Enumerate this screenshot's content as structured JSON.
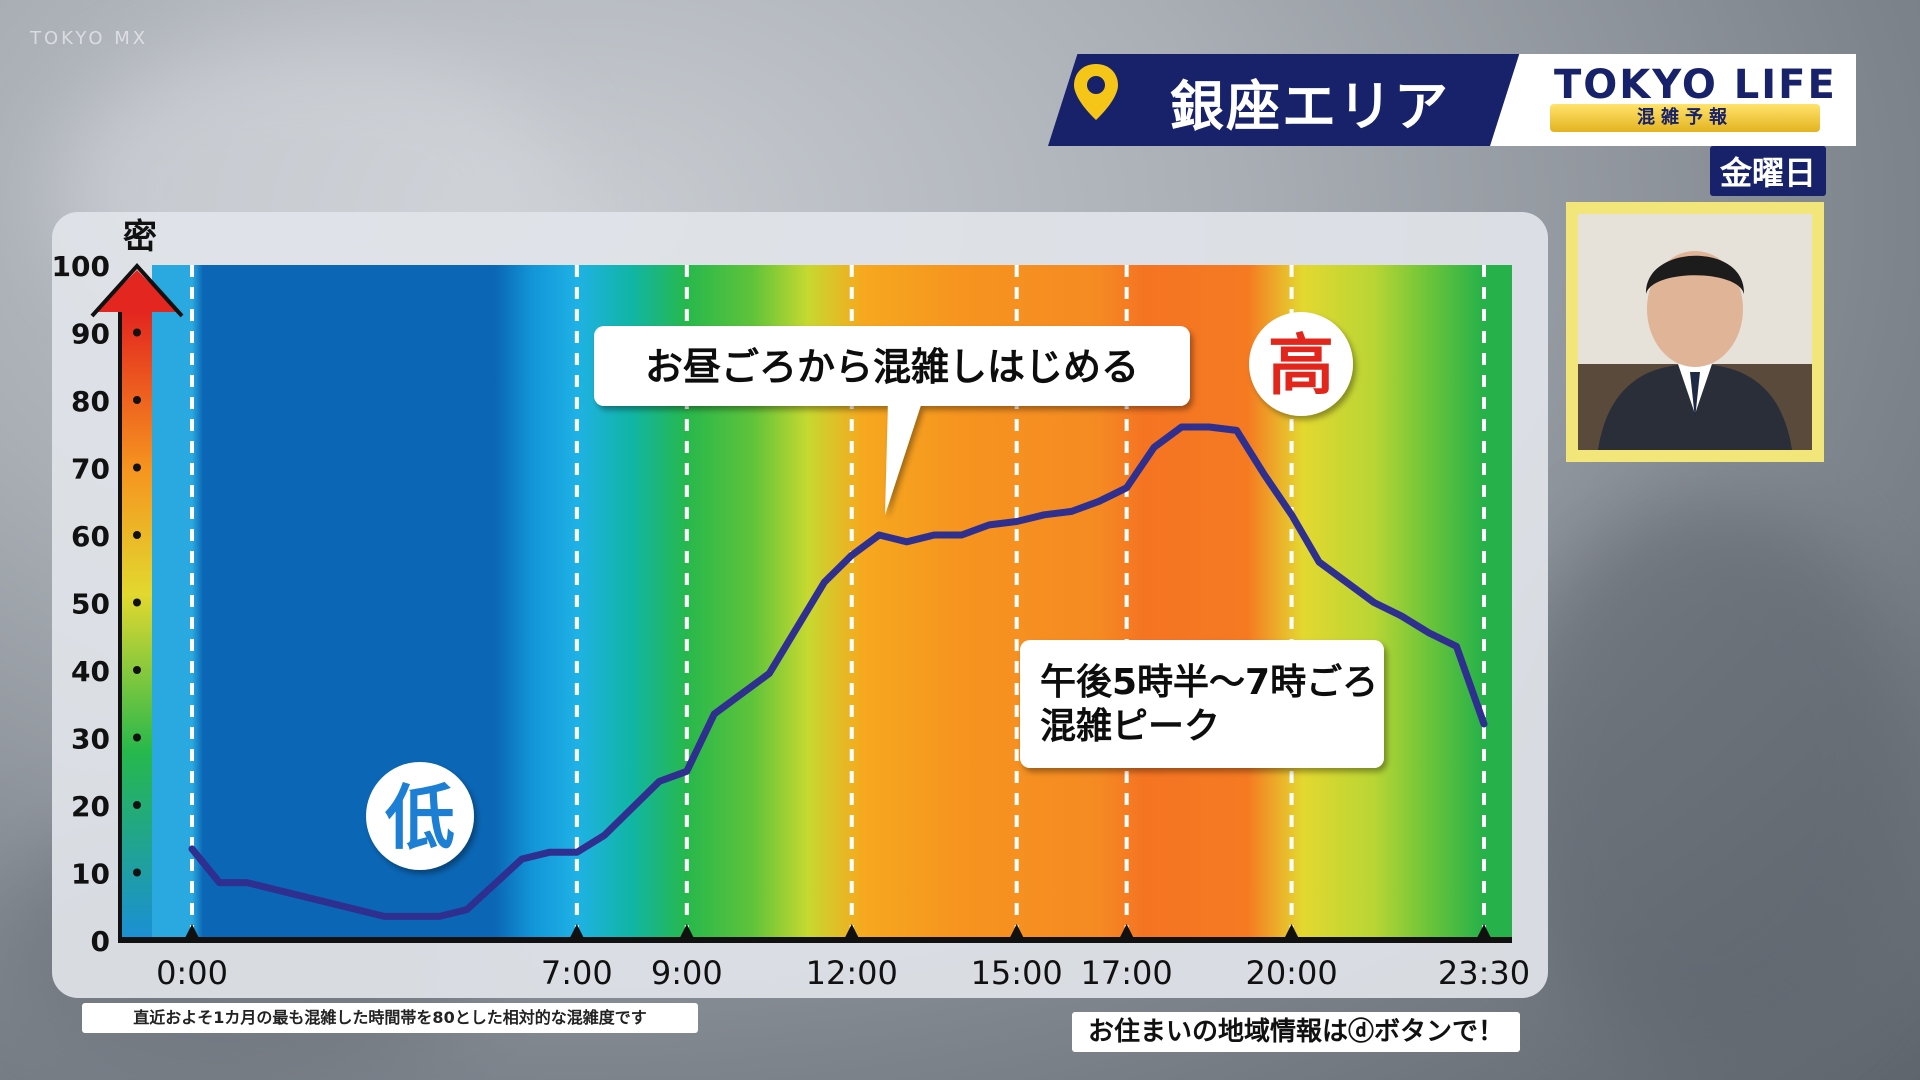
{
  "header": {
    "watermark": "TOKYO MX",
    "area_title": "銀座エリア",
    "logo": "TOKYO LIFE",
    "logo_sub": "混雑予報",
    "day": "金曜日"
  },
  "colors": {
    "banner": "#17226a",
    "line": "#2f2f8f"
  },
  "footer": {
    "note": "直近およそ1カ月の最も混雑した時間帯を80とした相対的な混雑度です",
    "info": "お住まいの地域情報はⓓボタンで！"
  },
  "chart_data": {
    "type": "line",
    "ylabel": "密",
    "ylim": [
      0,
      100
    ],
    "yticks": [
      0,
      10,
      20,
      30,
      40,
      50,
      60,
      70,
      80,
      90,
      100
    ],
    "xlim": [
      0,
      23.5
    ],
    "xtick_labels": [
      {
        "t": 0,
        "label": "0:00"
      },
      {
        "t": 7,
        "label": "7:00"
      },
      {
        "t": 9,
        "label": "9:00"
      },
      {
        "t": 12,
        "label": "12:00"
      },
      {
        "t": 15,
        "label": "15:00"
      },
      {
        "t": 17,
        "label": "17:00"
      },
      {
        "t": 20,
        "label": "20:00"
      },
      {
        "t": 23.5,
        "label": "23:30"
      }
    ],
    "points": [
      [
        0,
        13.5
      ],
      [
        0.5,
        8.5
      ],
      [
        1,
        8.5
      ],
      [
        3.5,
        3.5
      ],
      [
        4.5,
        3.5
      ],
      [
        5,
        4.5
      ],
      [
        6,
        12
      ],
      [
        6.5,
        13
      ],
      [
        7,
        13
      ],
      [
        7.5,
        15.5
      ],
      [
        8.5,
        23.5
      ],
      [
        9,
        25
      ],
      [
        9.5,
        33.5
      ],
      [
        10.5,
        39.5
      ],
      [
        11.5,
        53
      ],
      [
        12,
        57
      ],
      [
        12.5,
        60
      ],
      [
        13,
        59
      ],
      [
        13.5,
        60
      ],
      [
        14,
        60
      ],
      [
        14.5,
        61.5
      ],
      [
        15,
        62
      ],
      [
        15.5,
        63
      ],
      [
        16,
        63.5
      ],
      [
        16.5,
        65
      ],
      [
        17,
        67
      ],
      [
        17.5,
        73
      ],
      [
        18,
        76
      ],
      [
        18.5,
        76
      ],
      [
        19,
        75.5
      ],
      [
        19.5,
        69
      ],
      [
        20,
        63
      ],
      [
        20.5,
        56
      ],
      [
        21.5,
        50
      ],
      [
        22,
        48
      ],
      [
        22.5,
        45.5
      ],
      [
        23,
        43.5
      ],
      [
        23.5,
        32
      ]
    ],
    "band_colors": [
      {
        "t": 0,
        "color": "#2aa9e0"
      },
      {
        "t": 0.2,
        "color": "#0b66b5"
      },
      {
        "t": 5.5,
        "color": "#0b66b5"
      },
      {
        "t": 6.2,
        "color": "#1296d8"
      },
      {
        "t": 7,
        "color": "#1fb1e6"
      },
      {
        "t": 8,
        "color": "#11b5a4"
      },
      {
        "t": 9,
        "color": "#27b84c"
      },
      {
        "t": 10.2,
        "color": "#5fc33a"
      },
      {
        "t": 11.2,
        "color": "#c6d930"
      },
      {
        "t": 12.2,
        "color": "#f6a81f"
      },
      {
        "t": 14,
        "color": "#f6941f"
      },
      {
        "t": 16.5,
        "color": "#f58a23"
      },
      {
        "t": 17.3,
        "color": "#f57422"
      },
      {
        "t": 19.2,
        "color": "#f57a22"
      },
      {
        "t": 20.2,
        "color": "#e3d830"
      },
      {
        "t": 21.5,
        "color": "#b9d534"
      },
      {
        "t": 22.5,
        "color": "#6bc43a"
      },
      {
        "t": 23.5,
        "color": "#26b14a"
      }
    ],
    "annotations": {
      "callout_noon": "お昼ごろから混雑しはじめる",
      "callout_peak": "午後5時半～7時ごろ\n混雑ピーク",
      "high": "高",
      "low": "低"
    }
  }
}
